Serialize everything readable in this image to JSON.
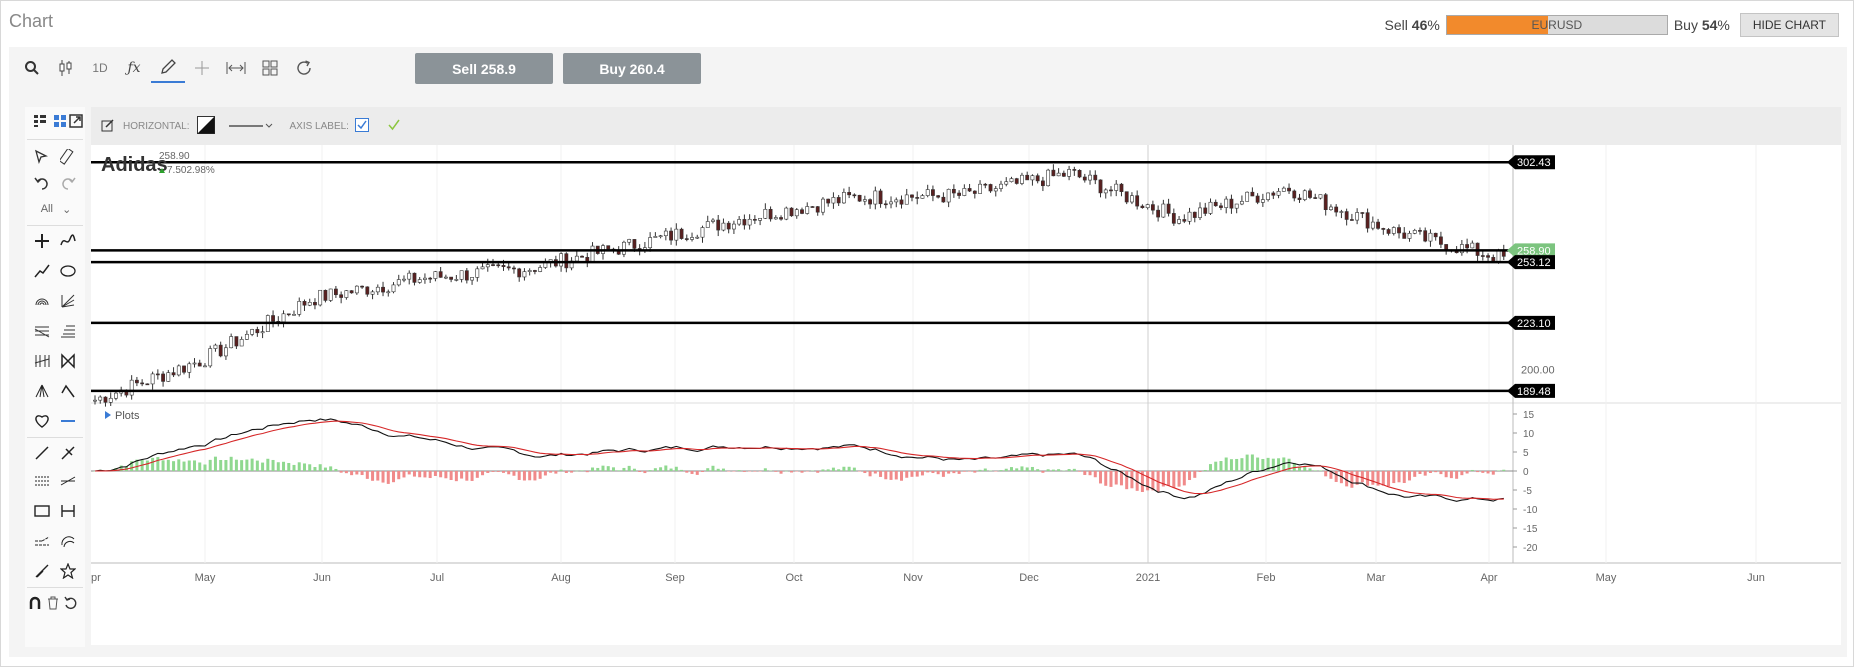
{
  "app": {
    "title": "Chart"
  },
  "sentiment": {
    "sell_label": "Sell",
    "sell_pct": "46",
    "pct_sign": "%",
    "buy_label": "Buy",
    "buy_pct": "54",
    "pair": "EURUSD",
    "sell_fraction": 0.46,
    "fill_color": "#f28a2c",
    "hide_label": "HIDE CHART"
  },
  "toolbar": {
    "timeframe": "1D",
    "sell_button": "Sell 258.9",
    "buy_button": "Buy 260.4",
    "icons": [
      "search-icon",
      "candlestick-icon",
      "indicator-fx-icon",
      "draw-pencil-icon",
      "crosshair-icon",
      "fit-width-icon",
      "layout-grid-icon",
      "refresh-icon"
    ]
  },
  "drawing_options": {
    "horizontal_label": "HORIZONTAL:",
    "axis_label": "AXIS LABEL:",
    "tool_filter": "All"
  },
  "chart": {
    "instrument": "Adidas",
    "last_price": "258.90",
    "change": "7.502.98%",
    "up_color": "#2ca02c",
    "plots_label": "Plots",
    "price_axis_labels": [
      "302.43",
      "258.90",
      "253.12",
      "223.10",
      "200.00",
      "189.48"
    ],
    "horizontal_levels": [
      302.43,
      253.12,
      258.9,
      223.1,
      189.48
    ],
    "macd_axis_labels": [
      "15",
      "10",
      "5",
      "0",
      "-5",
      "-10",
      "-15",
      "-20"
    ],
    "month_labels": [
      "pr",
      "May",
      "Jun",
      "Jul",
      "Aug",
      "Sep",
      "Oct",
      "Nov",
      "Dec",
      "2021",
      "Feb",
      "Mar",
      "Apr",
      "May",
      "Jun"
    ]
  },
  "chart_data": {
    "type": "line",
    "title": "Adidas",
    "series": [
      {
        "name": "Adidas",
        "x": [
          "Apr",
          "May",
          "Jun",
          "Jul",
          "Aug",
          "Sep",
          "Oct",
          "Nov",
          "Dec",
          "2021",
          "Feb",
          "Mar",
          "Apr",
          "May"
        ],
        "values": [
          185,
          205,
          235,
          245,
          250,
          262,
          275,
          285,
          286,
          297,
          275,
          290,
          268,
          255
        ]
      }
    ],
    "ylim": [
      180,
      305
    ]
  }
}
